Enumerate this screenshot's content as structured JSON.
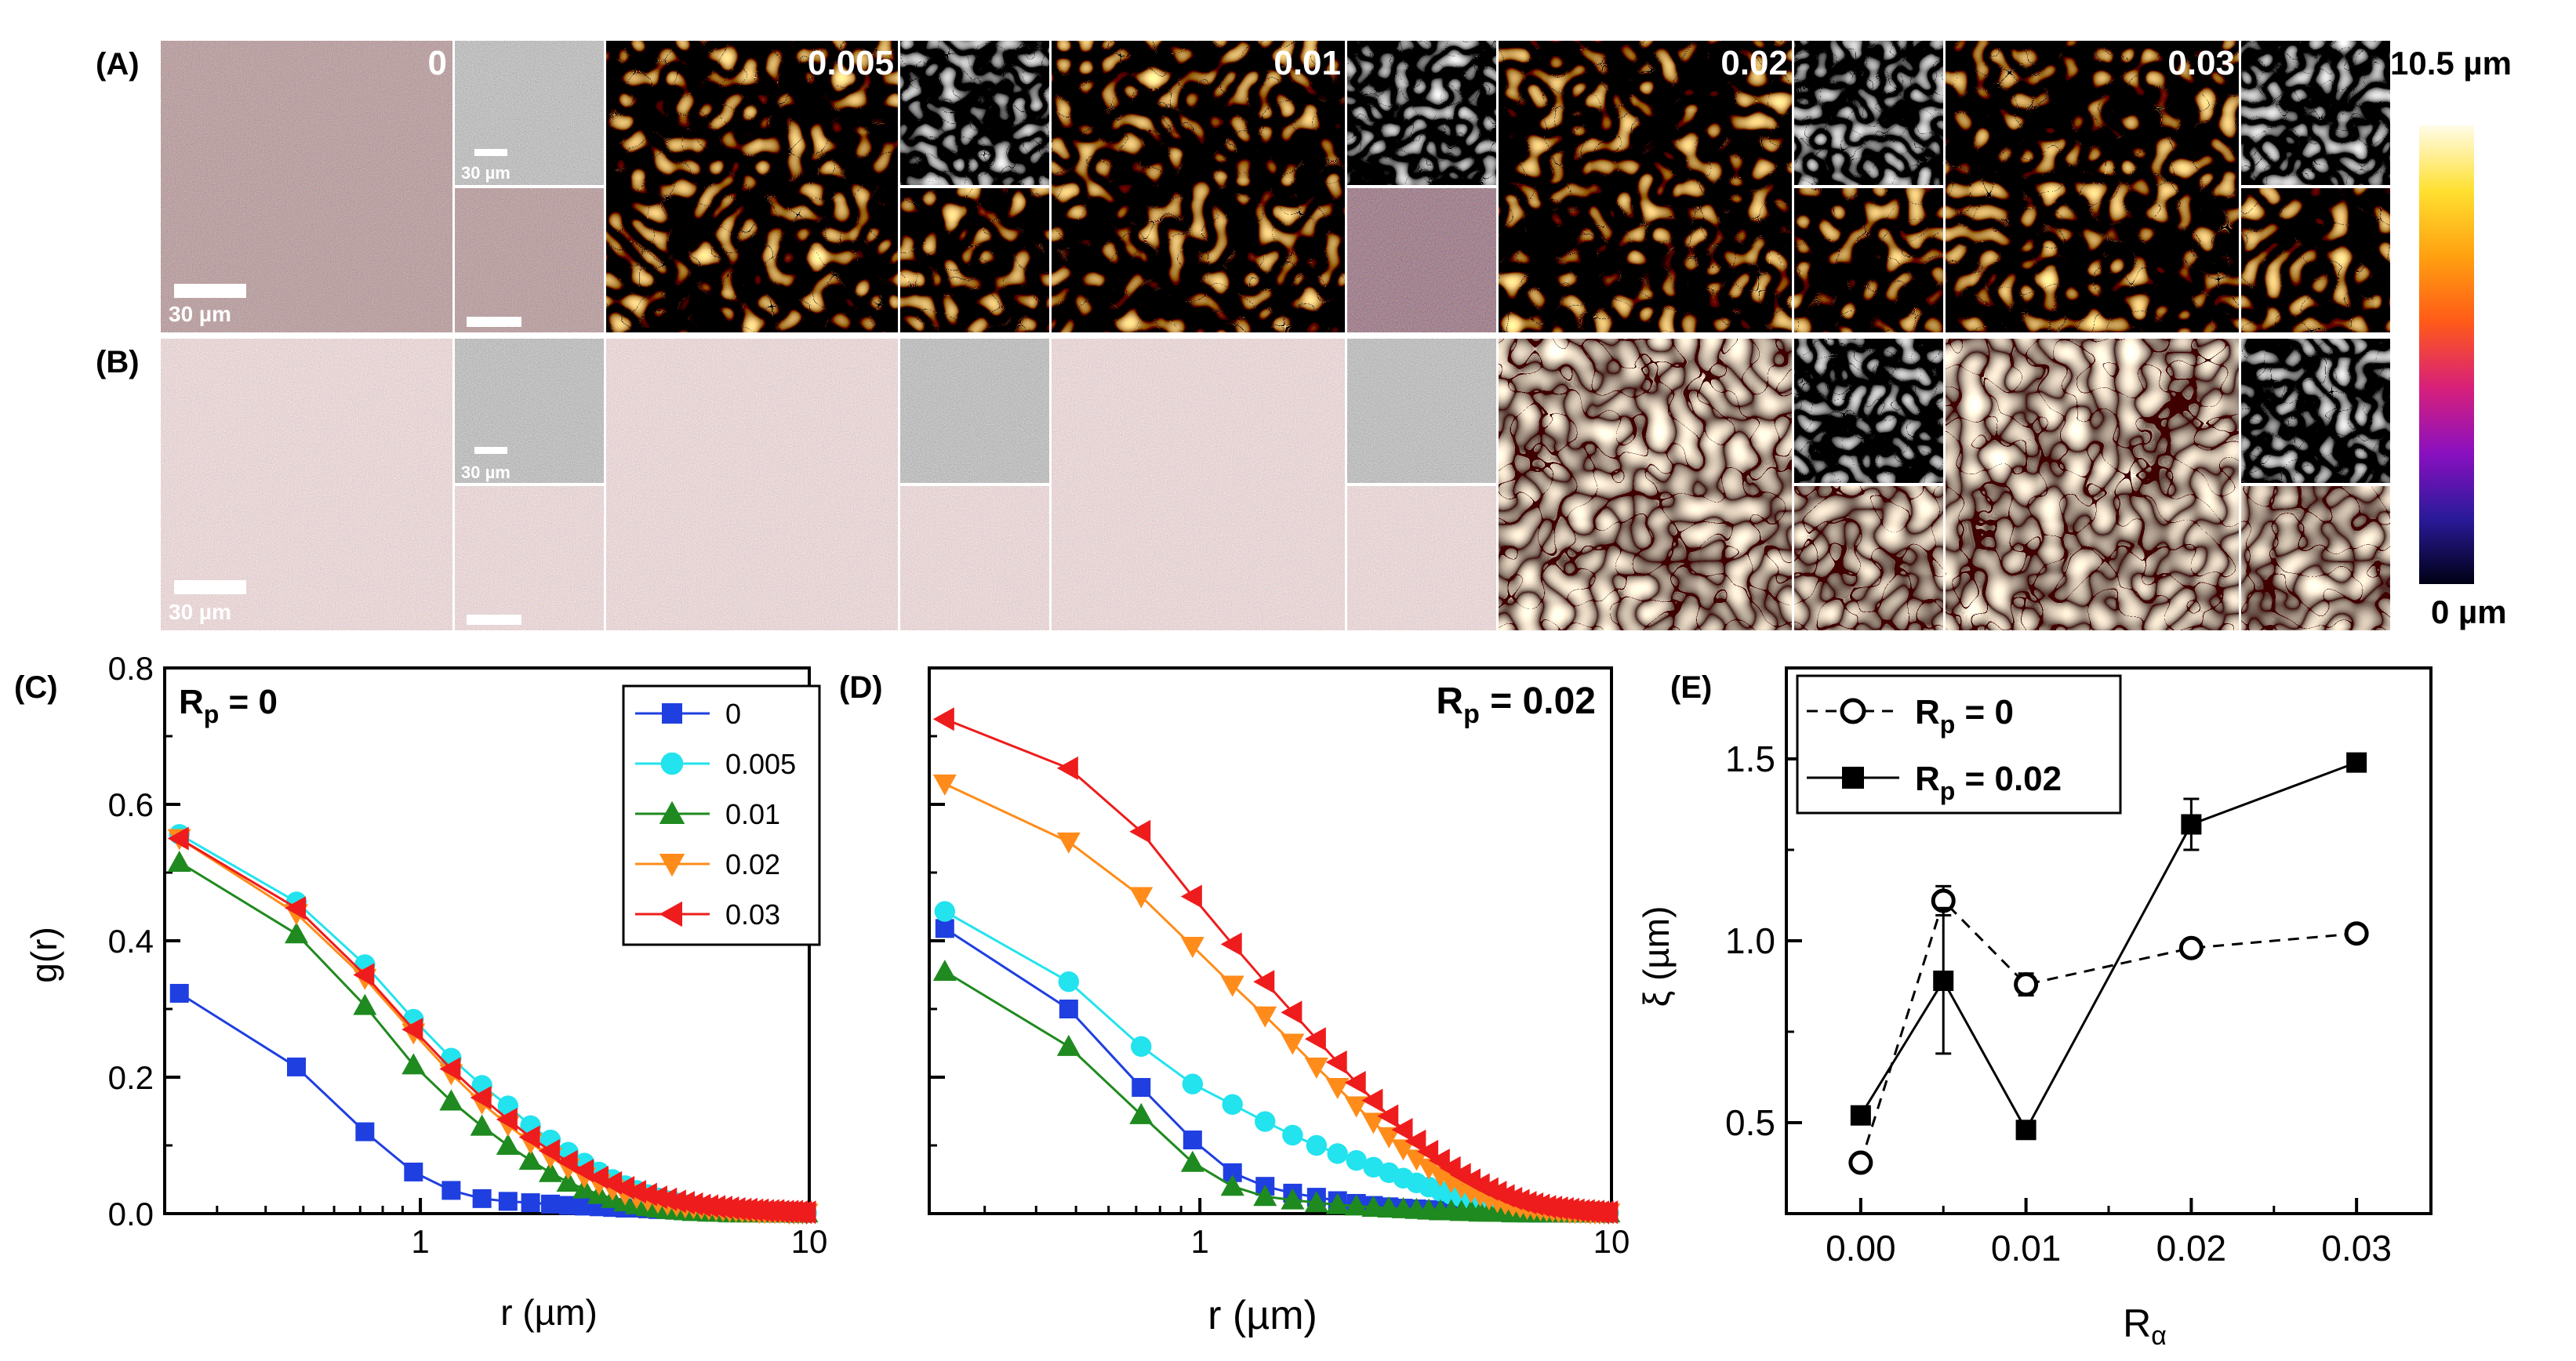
{
  "colors": {
    "s0": "#1f3fe0",
    "s0005": "#22e3ee",
    "s001": "#1f8a1f",
    "s002": "#ff8c1a",
    "s003": "#ee1c1c",
    "frame": "#000000",
    "cbar_stops": [
      "#000014",
      "#2a1a9a",
      "#8a10c0",
      "#d8207a",
      "#ff5a18",
      "#ffa010",
      "#ffe030",
      "#fffce8"
    ]
  },
  "top": {
    "row_labels": [
      "(A)",
      "(B)"
    ],
    "column_labels": [
      "0",
      "0.005",
      "0.01",
      "0.02",
      "0.03"
    ],
    "scalebar_text": "30 µm",
    "colorbar_top_label": "10.5 µm",
    "colorbar_bottom_label": "0 µm"
  },
  "chart_data": [
    {
      "panel": "(C)",
      "type": "line",
      "x_scale": "log",
      "xlim": [
        0.22,
        10
      ],
      "ylim": [
        0,
        0.8
      ],
      "xticks": [
        "1",
        "10"
      ],
      "yticks": [
        "0.0",
        "0.2",
        "0.4",
        "0.6",
        "0.8"
      ],
      "xlabel": "r (µm)",
      "ylabel": "g(r)",
      "annotation": {
        "main": "R",
        "sub": "p",
        "rest": " = 0"
      },
      "legend_placement": "top-right",
      "series": [
        {
          "name": "0",
          "marker": "square",
          "x": [
            0.24,
            0.48,
            0.72,
            0.96,
            1.2,
            1.44,
            1.68,
            1.92,
            2.16,
            2.4,
            2.64,
            2.88,
            3.12,
            3.36,
            3.6,
            3.84,
            4.08,
            4.32,
            4.56,
            4.8,
            5.04,
            5.28,
            5.52,
            5.76,
            6.0,
            6.24,
            6.48,
            6.72,
            6.96,
            7.2,
            7.44,
            7.68,
            7.92,
            8.16,
            8.4,
            8.64,
            8.88,
            9.12,
            9.36,
            9.6,
            9.84
          ],
          "y": [
            0.323,
            0.215,
            0.12,
            0.061,
            0.034,
            0.022,
            0.018,
            0.016,
            0.014,
            0.012,
            0.011,
            0.01,
            0.009,
            0.008,
            0.008,
            0.007,
            0.006,
            0.006,
            0.005,
            0.005,
            0.004,
            0.004,
            0.004,
            0.003,
            0.003,
            0.003,
            0.002,
            0.002,
            0.002,
            0.002,
            0.002,
            0.002,
            0.001,
            0.001,
            0.001,
            0.001,
            0.001,
            0.001,
            0.001,
            0.001,
            0.001
          ]
        },
        {
          "name": "0.005",
          "marker": "circle",
          "x": [
            0.24,
            0.48,
            0.72,
            0.96,
            1.2,
            1.44,
            1.68,
            1.92,
            2.16,
            2.4,
            2.64,
            2.88,
            3.12,
            3.36,
            3.6,
            3.84,
            4.08,
            4.32,
            4.56,
            4.8,
            5.04,
            5.28,
            5.52,
            5.76,
            6.0,
            6.24,
            6.48,
            6.72,
            6.96,
            7.2,
            7.44,
            7.68,
            7.92,
            8.16,
            8.4,
            8.64,
            8.88,
            9.12,
            9.36,
            9.6,
            9.84
          ],
          "y": [
            0.556,
            0.457,
            0.365,
            0.285,
            0.228,
            0.188,
            0.158,
            0.129,
            0.108,
            0.09,
            0.074,
            0.061,
            0.05,
            0.041,
            0.034,
            0.028,
            0.023,
            0.019,
            0.016,
            0.013,
            0.011,
            0.009,
            0.008,
            0.007,
            0.006,
            0.005,
            0.004,
            0.004,
            0.003,
            0.003,
            0.003,
            0.002,
            0.002,
            0.002,
            0.002,
            0.002,
            0.001,
            0.001,
            0.001,
            0.001,
            0.001
          ]
        },
        {
          "name": "0.01",
          "marker": "triangle-up",
          "x": [
            0.24,
            0.48,
            0.72,
            0.96,
            1.2,
            1.44,
            1.68,
            1.92,
            2.16,
            2.4,
            2.64,
            2.88,
            3.12,
            3.36,
            3.6,
            3.84,
            4.08,
            4.32,
            4.56,
            4.8,
            5.04,
            5.28,
            5.52,
            5.76,
            6.0,
            6.24,
            6.48,
            6.72,
            6.96,
            7.2,
            7.44,
            7.68,
            7.92,
            8.16,
            8.4,
            8.64,
            8.88,
            9.12,
            9.36,
            9.6,
            9.84
          ],
          "y": [
            0.515,
            0.41,
            0.305,
            0.218,
            0.165,
            0.128,
            0.1,
            0.078,
            0.06,
            0.046,
            0.036,
            0.028,
            0.022,
            0.017,
            0.013,
            0.01,
            0.008,
            0.006,
            0.005,
            0.004,
            0.003,
            0.003,
            0.002,
            0.002,
            0.002,
            0.001,
            0.001,
            0.001,
            0.001,
            0.001,
            0.001,
            0.001,
            0.001,
            0.001,
            0.001,
            0.001,
            0.001,
            0.001,
            0.001,
            0.001,
            0.001
          ]
        },
        {
          "name": "0.02",
          "marker": "triangle-down",
          "x": [
            0.24,
            0.48,
            0.72,
            0.96,
            1.2,
            1.44,
            1.68,
            1.92,
            2.16,
            2.4,
            2.64,
            2.88,
            3.12,
            3.36,
            3.6,
            3.84,
            4.08,
            4.32,
            4.56,
            4.8,
            5.04,
            5.28,
            5.52,
            5.76,
            6.0,
            6.24,
            6.48,
            6.72,
            6.96,
            7.2,
            7.44,
            7.68,
            7.92,
            8.16,
            8.4,
            8.64,
            8.88,
            9.12,
            9.36,
            9.6,
            9.84
          ],
          "y": [
            0.55,
            0.44,
            0.345,
            0.265,
            0.205,
            0.162,
            0.13,
            0.104,
            0.083,
            0.067,
            0.054,
            0.044,
            0.036,
            0.029,
            0.024,
            0.02,
            0.017,
            0.014,
            0.012,
            0.01,
            0.009,
            0.008,
            0.007,
            0.006,
            0.005,
            0.004,
            0.004,
            0.003,
            0.003,
            0.003,
            0.002,
            0.002,
            0.002,
            0.002,
            0.002,
            0.002,
            0.001,
            0.001,
            0.001,
            0.001,
            0.001
          ]
        },
        {
          "name": "0.03",
          "marker": "triangle-left",
          "x": [
            0.24,
            0.48,
            0.72,
            0.96,
            1.2,
            1.44,
            1.68,
            1.92,
            2.16,
            2.4,
            2.64,
            2.88,
            3.12,
            3.36,
            3.6,
            3.84,
            4.08,
            4.32,
            4.56,
            4.8,
            5.04,
            5.28,
            5.52,
            5.76,
            6.0,
            6.24,
            6.48,
            6.72,
            6.96,
            7.2,
            7.44,
            7.68,
            7.92,
            8.16,
            8.4,
            8.64,
            8.88,
            9.12,
            9.36,
            9.6,
            9.84
          ],
          "y": [
            0.55,
            0.448,
            0.35,
            0.27,
            0.212,
            0.17,
            0.138,
            0.112,
            0.092,
            0.076,
            0.063,
            0.053,
            0.045,
            0.038,
            0.032,
            0.028,
            0.024,
            0.021,
            0.018,
            0.016,
            0.014,
            0.012,
            0.011,
            0.01,
            0.009,
            0.008,
            0.007,
            0.006,
            0.006,
            0.005,
            0.005,
            0.004,
            0.004,
            0.004,
            0.003,
            0.003,
            0.003,
            0.003,
            0.002,
            0.002,
            0.002
          ]
        }
      ]
    },
    {
      "panel": "(D)",
      "type": "line",
      "x_scale": "log",
      "xlim": [
        0.22,
        10
      ],
      "ylim": [
        0,
        0.8
      ],
      "xticks": [
        "1",
        "10"
      ],
      "yticks": [],
      "xlabel": "r (µm)",
      "ylabel": "",
      "annotation": {
        "main": "R",
        "sub": "p",
        "rest": " = 0.02"
      },
      "series": [
        {
          "name": "0",
          "marker": "square",
          "x": [
            0.24,
            0.48,
            0.72,
            0.96,
            1.2,
            1.44,
            1.68,
            1.92,
            2.16,
            2.4,
            2.64,
            2.88,
            3.12,
            3.36,
            3.6,
            3.84,
            4.08,
            4.32,
            4.56,
            4.8,
            5.04,
            5.28,
            5.52,
            5.76,
            6.0,
            6.24,
            6.48,
            6.72,
            6.96,
            7.2,
            7.44,
            7.68,
            7.92,
            8.16,
            8.4,
            8.64,
            8.88,
            9.12,
            9.36,
            9.6,
            9.84
          ],
          "y": [
            0.418,
            0.3,
            0.185,
            0.108,
            0.06,
            0.04,
            0.03,
            0.024,
            0.019,
            0.015,
            0.012,
            0.01,
            0.008,
            0.007,
            0.006,
            0.005,
            0.004,
            0.004,
            0.003,
            0.003,
            0.003,
            0.002,
            0.002,
            0.002,
            0.002,
            0.001,
            0.001,
            0.001,
            0.001,
            0.001,
            0.001,
            0.001,
            0.001,
            0.001,
            0.001,
            0.001,
            0.001,
            0.001,
            0.001,
            0.001,
            0.001
          ]
        },
        {
          "name": "0.005",
          "marker": "circle",
          "x": [
            0.24,
            0.48,
            0.72,
            0.96,
            1.2,
            1.44,
            1.68,
            1.92,
            2.16,
            2.4,
            2.64,
            2.88,
            3.12,
            3.36,
            3.6,
            3.84,
            4.08,
            4.32,
            4.56,
            4.8,
            5.04,
            5.28,
            5.52,
            5.76,
            6.0,
            6.24,
            6.48,
            6.72,
            6.96,
            7.2,
            7.44,
            7.68,
            7.92,
            8.16,
            8.4,
            8.64,
            8.88,
            9.12,
            9.36,
            9.6,
            9.84
          ],
          "y": [
            0.443,
            0.34,
            0.245,
            0.19,
            0.16,
            0.135,
            0.115,
            0.1,
            0.088,
            0.078,
            0.068,
            0.06,
            0.052,
            0.045,
            0.039,
            0.033,
            0.028,
            0.024,
            0.021,
            0.018,
            0.015,
            0.013,
            0.011,
            0.01,
            0.008,
            0.007,
            0.006,
            0.005,
            0.005,
            0.004,
            0.004,
            0.003,
            0.003,
            0.003,
            0.002,
            0.002,
            0.002,
            0.002,
            0.002,
            0.001,
            0.001
          ]
        },
        {
          "name": "0.01",
          "marker": "triangle-up",
          "x": [
            0.24,
            0.48,
            0.72,
            0.96,
            1.2,
            1.44,
            1.68,
            1.92,
            2.16,
            2.4,
            2.64,
            2.88,
            3.12,
            3.36,
            3.6,
            3.84,
            4.08,
            4.32,
            4.56,
            4.8,
            5.04,
            5.28,
            5.52,
            5.76,
            6.0,
            6.24,
            6.48,
            6.72,
            6.96,
            7.2,
            7.44,
            7.68,
            7.92,
            8.16,
            8.4,
            8.64,
            8.88,
            9.12,
            9.36,
            9.6,
            9.84
          ],
          "y": [
            0.355,
            0.245,
            0.145,
            0.075,
            0.04,
            0.025,
            0.02,
            0.016,
            0.013,
            0.011,
            0.009,
            0.008,
            0.007,
            0.006,
            0.005,
            0.004,
            0.004,
            0.003,
            0.003,
            0.002,
            0.002,
            0.002,
            0.002,
            0.001,
            0.001,
            0.001,
            0.001,
            0.001,
            0.001,
            0.001,
            0.001,
            0.001,
            0.001,
            0.001,
            0.001,
            0.001,
            0.001,
            0.001,
            0.001,
            0.001,
            0.001
          ]
        },
        {
          "name": "0.02",
          "marker": "triangle-down",
          "x": [
            0.24,
            0.48,
            0.72,
            0.96,
            1.2,
            1.44,
            1.68,
            1.92,
            2.16,
            2.4,
            2.64,
            2.88,
            3.12,
            3.36,
            3.6,
            3.84,
            4.08,
            4.32,
            4.56,
            4.8,
            5.04,
            5.28,
            5.52,
            5.76,
            6.0,
            6.24,
            6.48,
            6.72,
            6.96,
            7.2,
            7.44,
            7.68,
            7.92,
            8.16,
            8.4,
            8.64,
            8.88,
            9.12,
            9.36,
            9.6,
            9.84
          ],
          "y": [
            0.63,
            0.545,
            0.465,
            0.392,
            0.335,
            0.29,
            0.25,
            0.215,
            0.185,
            0.158,
            0.134,
            0.113,
            0.095,
            0.08,
            0.067,
            0.056,
            0.047,
            0.039,
            0.032,
            0.027,
            0.022,
            0.018,
            0.015,
            0.012,
            0.01,
            0.008,
            0.007,
            0.006,
            0.005,
            0.004,
            0.003,
            0.003,
            0.002,
            0.002,
            0.002,
            0.002,
            0.001,
            0.001,
            0.001,
            0.001,
            0.001
          ]
        },
        {
          "name": "0.03",
          "marker": "triangle-left",
          "x": [
            0.24,
            0.48,
            0.72,
            0.96,
            1.2,
            1.44,
            1.68,
            1.92,
            2.16,
            2.4,
            2.64,
            2.88,
            3.12,
            3.36,
            3.6,
            3.84,
            4.08,
            4.32,
            4.56,
            4.8,
            5.04,
            5.28,
            5.52,
            5.76,
            6.0,
            6.24,
            6.48,
            6.72,
            6.96,
            7.2,
            7.44,
            7.68,
            7.92,
            8.16,
            8.4,
            8.64,
            8.88,
            9.12,
            9.36,
            9.6,
            9.84
          ],
          "y": [
            0.725,
            0.653,
            0.56,
            0.465,
            0.395,
            0.34,
            0.295,
            0.256,
            0.222,
            0.192,
            0.166,
            0.143,
            0.123,
            0.106,
            0.091,
            0.078,
            0.067,
            0.057,
            0.049,
            0.042,
            0.036,
            0.031,
            0.026,
            0.022,
            0.019,
            0.016,
            0.014,
            0.012,
            0.01,
            0.009,
            0.008,
            0.007,
            0.006,
            0.005,
            0.004,
            0.004,
            0.003,
            0.003,
            0.002,
            0.002,
            0.002
          ]
        }
      ]
    },
    {
      "panel": "(E)",
      "type": "line",
      "xlim": [
        -0.0045,
        0.0345
      ],
      "ylim": [
        0.25,
        1.75
      ],
      "xticks": [
        "0.00",
        "0.01",
        "0.02",
        "0.03"
      ],
      "yticks": [
        "0.5",
        "1.0",
        "1.5"
      ],
      "xlabel": {
        "main": "R",
        "sub": "α"
      },
      "ylabel": "ξ (µm)",
      "legend_placement": "top-left",
      "series": [
        {
          "name": "R_p = 0",
          "label_main": "R",
          "label_sub": "p",
          "label_rest": " = 0",
          "marker": "open-circle",
          "line": "dashed",
          "x": [
            0.0,
            0.005,
            0.01,
            0.02,
            0.03
          ],
          "y": [
            0.39,
            1.11,
            0.88,
            0.98,
            1.02
          ],
          "err": [
            0.02,
            0.04,
            0.03,
            0.02,
            0.02
          ]
        },
        {
          "name": "R_p = 0.02",
          "label_main": "R",
          "label_sub": "p",
          "label_rest": " = 0.02",
          "marker": "filled-square",
          "line": "solid",
          "x": [
            0.0,
            0.005,
            0.01,
            0.02,
            0.03
          ],
          "y": [
            0.52,
            0.89,
            0.48,
            1.32,
            1.49
          ],
          "err": [
            0.0,
            0.2,
            0.0,
            0.07,
            0.0
          ]
        }
      ]
    }
  ]
}
